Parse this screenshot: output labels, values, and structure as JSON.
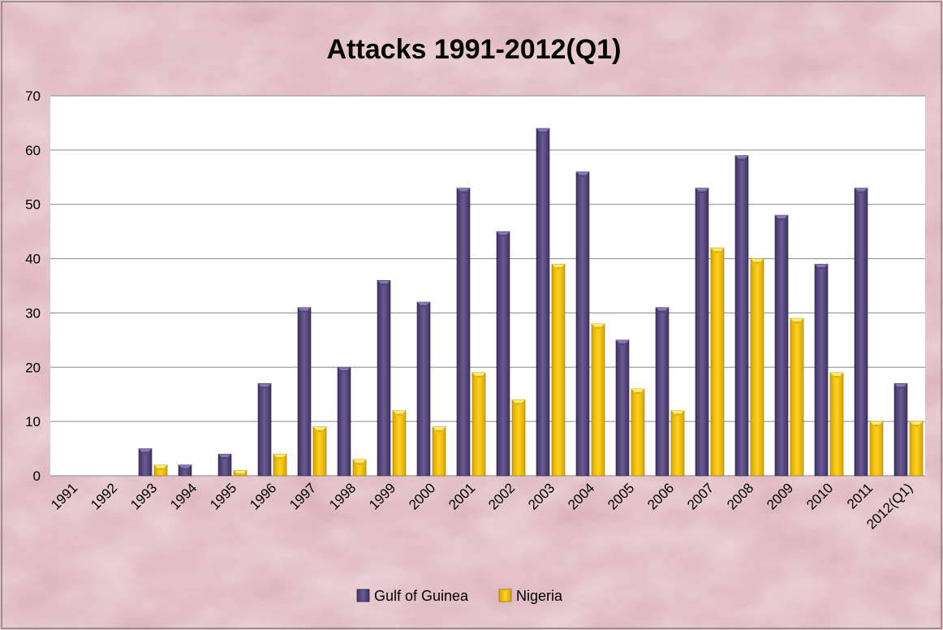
{
  "chart_data": {
    "type": "bar",
    "title": "Attacks 1991-2012(Q1)",
    "categories": [
      "1991",
      "1992",
      "1993",
      "1994",
      "1995",
      "1996",
      "1997",
      "1998",
      "1999",
      "2000",
      "2001",
      "2002",
      "2003",
      "2004",
      "2005",
      "2006",
      "2007",
      "2008",
      "2009",
      "2010",
      "2011",
      "2012(Q1)"
    ],
    "series": [
      {
        "name": "Gulf of Guinea",
        "color": "#5a4a7e",
        "values": [
          0,
          0,
          5,
          2,
          4,
          17,
          31,
          20,
          36,
          32,
          53,
          45,
          64,
          56,
          25,
          31,
          53,
          59,
          48,
          39,
          53,
          17
        ]
      },
      {
        "name": "Nigeria",
        "color": "#f2c200",
        "values": [
          0,
          0,
          2,
          0,
          1,
          4,
          9,
          3,
          12,
          9,
          19,
          14,
          39,
          28,
          16,
          12,
          42,
          40,
          29,
          19,
          10,
          10
        ]
      }
    ],
    "yticks": [
      "0",
      "10",
      "20",
      "30",
      "40",
      "50",
      "60",
      "70"
    ],
    "ylim": [
      0,
      70
    ],
    "grid": true,
    "legend_position": "bottom",
    "background_color": "#dfb7bf",
    "plot_background": "#ffffff"
  }
}
